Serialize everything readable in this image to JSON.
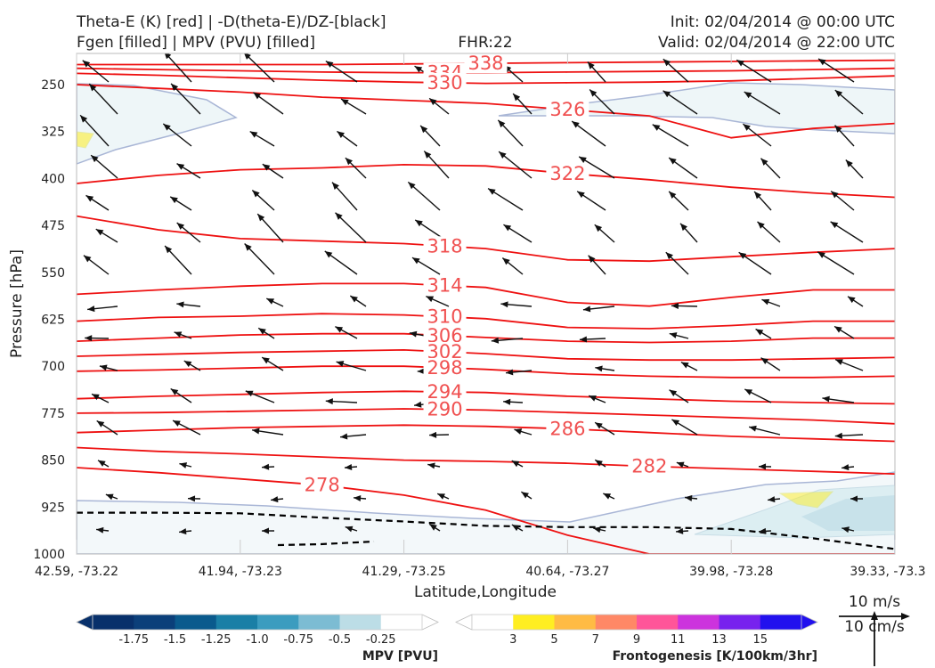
{
  "header": {
    "title_left_1": "Theta-E (K) [red] | -D(theta-E)/DZ-[black]",
    "title_left_2": "Fgen [filled] | MPV (PVU) [filled]",
    "fhr": "FHR:22",
    "init": "Init: 02/04/2014 @ 00:00 UTC",
    "valid": "Valid: 02/04/2014 @ 22:00 UTC"
  },
  "colors": {
    "theta_e": "#ee1111",
    "dtheta_dz": "#000000",
    "mpv_fill": [
      "#08306b",
      "#0b3f7a",
      "#0a5a8d",
      "#1a7fa6",
      "#3b9cbf",
      "#7cbcd3",
      "#bcdde6",
      "#ffffff"
    ],
    "fgen_fill": [
      "#ffffff",
      "#ffee22",
      "#ffbb44",
      "#ff8866",
      "#ff5599",
      "#cc33dd",
      "#7722ee",
      "#2211ee"
    ]
  },
  "chart_data": {
    "type": "cross-section",
    "xlabel": "Latitude,Longitude",
    "ylabel": "Pressure [hPa]",
    "x_ticks": [
      "42.59, -73.22",
      "41.94, -73.23",
      "41.29, -73.25",
      "40.64, -73.27",
      "39.98, -73.28",
      "39.33, -73.3"
    ],
    "y_ticks": [
      250,
      325,
      400,
      475,
      550,
      625,
      700,
      775,
      850,
      925,
      1000
    ],
    "ylim": [
      1000,
      200
    ],
    "theta_e_contours": [
      {
        "level": 338,
        "p": [
          218,
          218,
          218,
          218,
          217,
          216,
          215,
          214,
          213,
          212,
          211
        ]
      },
      {
        "level": 334,
        "p": [
          224,
          226,
          228,
          230,
          231,
          231,
          230,
          229,
          228,
          226,
          224
        ]
      },
      {
        "level": 330,
        "p": [
          232,
          235,
          239,
          243,
          246,
          248,
          247,
          246,
          244,
          240,
          236
        ]
      },
      {
        "level": 326,
        "p": [
          250,
          256,
          262,
          270,
          275,
          280,
          290,
          300,
          335,
          320,
          312
        ]
      },
      {
        "level": 322,
        "p": [
          408,
          395,
          386,
          383,
          378,
          380,
          392,
          402,
          414,
          423,
          430
        ]
      },
      {
        "level": 318,
        "p": [
          460,
          482,
          496,
          500,
          504,
          512,
          530,
          532,
          525,
          518,
          512
        ]
      },
      {
        "level": 314,
        "p": [
          585,
          578,
          572,
          568,
          568,
          574,
          598,
          604,
          590,
          578,
          578
        ]
      },
      {
        "level": 310,
        "p": [
          628,
          622,
          620,
          616,
          618,
          624,
          638,
          640,
          635,
          628,
          628
        ]
      },
      {
        "level": 306,
        "p": [
          660,
          655,
          650,
          648,
          648,
          654,
          660,
          662,
          660,
          655,
          655
        ]
      },
      {
        "level": 302,
        "p": [
          684,
          681,
          678,
          676,
          674,
          680,
          688,
          690,
          690,
          688,
          686
        ]
      },
      {
        "level": 298,
        "p": [
          708,
          706,
          703,
          700,
          700,
          705,
          712,
          716,
          718,
          718,
          716
        ]
      },
      {
        "level": 294,
        "p": [
          752,
          748,
          745,
          742,
          740,
          742,
          748,
          752,
          756,
          758,
          760
        ]
      },
      {
        "level": 290,
        "p": [
          775,
          774,
          772,
          770,
          768,
          770,
          774,
          778,
          782,
          786,
          792
        ]
      },
      {
        "level": 286,
        "p": [
          806,
          802,
          798,
          796,
          794,
          796,
          800,
          806,
          812,
          816,
          820
        ]
      },
      {
        "level": 282,
        "p": [
          830,
          836,
          840,
          845,
          850,
          852,
          855,
          860,
          864,
          868,
          872
        ]
      },
      {
        "level": 278,
        "p": [
          862,
          870,
          880,
          890,
          906,
          930,
          970,
          1000,
          1000,
          1000,
          1000
        ]
      }
    ],
    "dtheta_dz_zero": {
      "level": 0,
      "p": [
        934,
        934,
        935,
        942,
        948,
        955,
        957,
        957,
        960,
        975,
        992
      ]
    },
    "wind_reference": {
      "speed_1": "10 m/s",
      "speed_2": "10 cm/s"
    },
    "colorbars": [
      {
        "label": "MPV [PVU]",
        "ticks": [
          "-1.75",
          "-1.5",
          "-1.25",
          "-1.0",
          "-0.75",
          "-0.5",
          "-0.25"
        ]
      },
      {
        "label": "Frontogenesis [K/100km/3hr]",
        "ticks": [
          "3",
          "5",
          "7",
          "9",
          "11",
          "13",
          "15"
        ]
      }
    ]
  }
}
